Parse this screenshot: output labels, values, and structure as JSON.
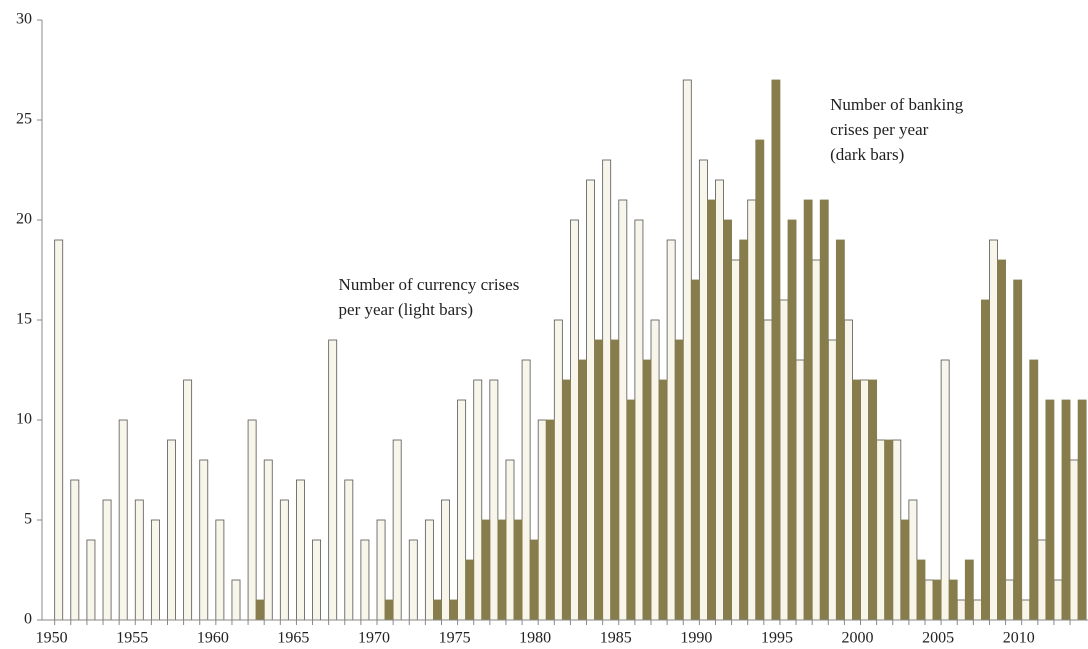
{
  "chart_data": {
    "type": "bar",
    "annotations": [
      {
        "x": 1967.8,
        "y": 16.5,
        "lines": [
          "Number of currency crises",
          "per year (light bars)"
        ]
      },
      {
        "x": 1998.3,
        "y": 25.5,
        "lines": [
          "Number of banking",
          "crises per year",
          "(dark bars)"
        ]
      }
    ],
    "x": [
      1950,
      1951,
      1952,
      1953,
      1954,
      1955,
      1956,
      1957,
      1958,
      1959,
      1960,
      1961,
      1962,
      1963,
      1964,
      1965,
      1966,
      1967,
      1968,
      1969,
      1970,
      1971,
      1972,
      1973,
      1974,
      1975,
      1976,
      1977,
      1978,
      1979,
      1980,
      1981,
      1982,
      1983,
      1984,
      1985,
      1986,
      1987,
      1988,
      1989,
      1990,
      1991,
      1992,
      1993,
      1994,
      1995,
      1996,
      1997,
      1998,
      1999,
      2000,
      2001,
      2002,
      2003,
      2004,
      2005,
      2006,
      2007,
      2008,
      2009,
      2010,
      2011,
      2012,
      2013
    ],
    "series": [
      {
        "color": "#f8f6ea",
        "values": [
          19,
          7,
          4,
          6,
          10,
          6,
          5,
          9,
          12,
          8,
          5,
          2,
          10,
          8,
          6,
          7,
          4,
          14,
          7,
          4,
          5,
          9,
          4,
          5,
          6,
          11,
          12,
          12,
          8,
          13,
          10,
          15,
          20,
          22,
          23,
          21,
          20,
          15,
          19,
          27,
          23,
          22,
          18,
          21,
          15,
          16,
          13,
          18,
          14,
          15,
          12,
          9,
          9,
          6,
          2,
          13,
          1,
          1,
          19,
          2,
          1,
          4,
          2,
          8
        ]
      },
      {
        "color": "#877d4c",
        "values": [
          0,
          0,
          0,
          0,
          0,
          0,
          0,
          0,
          0,
          0,
          0,
          0,
          1,
          0,
          0,
          0,
          0,
          0,
          0,
          0,
          1,
          0,
          0,
          1,
          1,
          3,
          5,
          5,
          5,
          4,
          10,
          12,
          13,
          14,
          14,
          11,
          13,
          12,
          14,
          17,
          21,
          20,
          19,
          24,
          27,
          20,
          21,
          21,
          19,
          12,
          12,
          9,
          5,
          3,
          2,
          2,
          3,
          16,
          18,
          17,
          13,
          11,
          11,
          11
        ]
      }
    ],
    "xlim": [
      1949.4,
      2014.3
    ],
    "xticks": [
      1950,
      1955,
      1960,
      1965,
      1970,
      1975,
      1980,
      1985,
      1990,
      1995,
      2000,
      2005,
      2010
    ],
    "ylim": [
      0,
      30
    ],
    "yticks": [
      0,
      5,
      10,
      15,
      20,
      25,
      30
    ],
    "grid": false
  }
}
